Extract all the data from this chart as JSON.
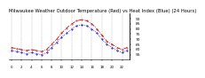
{
  "title": "Milwaukee Weather Outdoor Temperature (Red) vs Heat Index (Blue) (24 Hours)",
  "title_fontsize": 3.8,
  "background_color": "#ffffff",
  "hours": [
    0,
    1,
    2,
    3,
    4,
    5,
    6,
    7,
    8,
    9,
    10,
    11,
    12,
    13,
    14,
    15,
    16,
    17,
    18,
    19,
    20,
    21,
    22,
    23
  ],
  "temp": [
    62,
    61,
    60,
    59,
    60,
    59,
    58,
    60,
    65,
    70,
    76,
    81,
    85,
    88,
    89,
    88,
    85,
    80,
    74,
    68,
    65,
    62,
    60,
    62
  ],
  "heat_index": [
    59,
    58,
    57,
    56,
    57,
    56,
    55,
    57,
    62,
    67,
    72,
    76,
    80,
    83,
    84,
    83,
    80,
    76,
    70,
    65,
    62,
    59,
    57,
    59
  ],
  "temp_color": "#cc0000",
  "heat_color": "#0000cc",
  "ylim_min": 50,
  "ylim_max": 95,
  "ytick_values": [
    55,
    60,
    65,
    70,
    75,
    80,
    85,
    90
  ],
  "ytick_fontsize": 3.2,
  "xtick_fontsize": 2.8,
  "vline_color": "#aaaaaa",
  "vline_style": "--"
}
